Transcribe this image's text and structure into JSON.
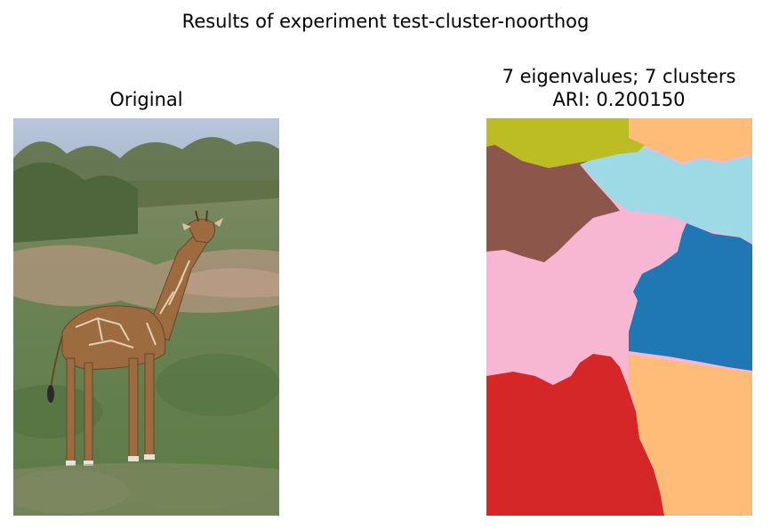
{
  "figure": {
    "suptitle": "Results of experiment test-cluster-noorthog"
  },
  "chart_data": [
    {
      "type": "image",
      "title": "Original",
      "subject": "giraffe-photo"
    },
    {
      "type": "heatmap",
      "title_line1": "7 eigenvalues; 7 clusters",
      "title_line2": "ARI: 0.200150",
      "n_eigenvalues": 7,
      "n_clusters": 7,
      "ari": 0.20015,
      "clusters": [
        {
          "name": "olive",
          "color": "#bcbd22"
        },
        {
          "name": "orange",
          "color": "#ffbb78"
        },
        {
          "name": "brown",
          "color": "#8c564b"
        },
        {
          "name": "light-blue",
          "color": "#9edae5"
        },
        {
          "name": "pink",
          "color": "#f7b6d2"
        },
        {
          "name": "blue",
          "color": "#1f77b4"
        },
        {
          "name": "red",
          "color": "#d62728"
        }
      ]
    }
  ]
}
